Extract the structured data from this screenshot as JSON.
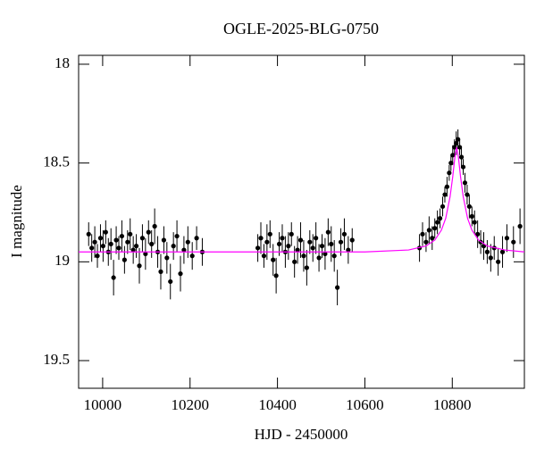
{
  "chart_data": {
    "type": "scatter",
    "title": "OGLE-2025-BLG-0750",
    "x_label": "HJD - 2450000",
    "y_label": "I magnitude",
    "xlim": [
      9945,
      10965
    ],
    "ylim": [
      17.955,
      19.64
    ],
    "y_inverted": true,
    "xticks": [
      10000,
      10200,
      10400,
      10600,
      10800
    ],
    "yticks": [
      18,
      18.5,
      19,
      19.5
    ],
    "series": [
      {
        "type": "errorbar",
        "color": "#000000",
        "x": [
          9968,
          9975,
          9982,
          9988,
          9995,
          10001,
          10007,
          10013,
          10019,
          10025,
          10031,
          10037,
          10044,
          10050,
          10057,
          10063,
          10070,
          10077,
          10084,
          10091,
          10098,
          10105,
          10112,
          10119,
          10126,
          10133,
          10140,
          10147,
          10155,
          10162,
          10170,
          10178,
          10186,
          10195,
          10205,
          10215,
          10228,
          10355,
          10362,
          10369,
          10376,
          10383,
          10390,
          10397,
          10404,
          10411,
          10418,
          10425,
          10432,
          10439,
          10446,
          10453,
          10460,
          10467,
          10474,
          10481,
          10488,
          10495,
          10502,
          10509,
          10516,
          10523,
          10530,
          10537,
          10545,
          10553,
          10562,
          10571,
          10725,
          10732,
          10740,
          10747,
          10754,
          10760,
          10766,
          10772,
          10778,
          10783,
          10788,
          10793,
          10797,
          10801,
          10805,
          10809,
          10813,
          10817,
          10821,
          10825,
          10829,
          10834,
          10839,
          10845,
          10851,
          10858,
          10865,
          10872,
          10880,
          10888,
          10896,
          10905,
          10915,
          10925,
          10940,
          10955
        ],
        "values": [
          18.86,
          18.93,
          18.9,
          18.97,
          18.88,
          18.92,
          18.85,
          18.95,
          18.91,
          19.08,
          18.89,
          18.93,
          18.87,
          18.99,
          18.9,
          18.86,
          18.94,
          18.92,
          19.02,
          18.88,
          18.96,
          18.85,
          18.91,
          18.82,
          18.95,
          19.05,
          18.89,
          18.98,
          19.1,
          18.92,
          18.87,
          19.06,
          18.94,
          18.9,
          18.97,
          18.88,
          18.95,
          18.93,
          18.88,
          18.97,
          18.9,
          18.86,
          18.99,
          19.07,
          18.91,
          18.88,
          18.95,
          18.92,
          18.86,
          19.0,
          18.94,
          18.89,
          18.97,
          19.03,
          18.9,
          18.93,
          18.88,
          18.98,
          18.92,
          18.96,
          18.85,
          18.91,
          18.97,
          19.13,
          18.9,
          18.86,
          18.94,
          18.89,
          18.93,
          18.86,
          18.9,
          18.84,
          18.88,
          18.83,
          18.8,
          18.78,
          18.72,
          18.66,
          18.62,
          18.55,
          18.5,
          18.46,
          18.42,
          18.4,
          18.38,
          18.42,
          18.47,
          18.52,
          18.6,
          18.66,
          18.72,
          18.77,
          18.8,
          18.86,
          18.9,
          18.92,
          18.95,
          18.98,
          18.93,
          19.0,
          18.95,
          18.88,
          18.9,
          18.82
        ],
        "errors": [
          0.06,
          0.07,
          0.08,
          0.06,
          0.07,
          0.08,
          0.06,
          0.07,
          0.08,
          0.09,
          0.07,
          0.06,
          0.08,
          0.07,
          0.06,
          0.08,
          0.07,
          0.06,
          0.09,
          0.07,
          0.08,
          0.06,
          0.07,
          0.09,
          0.08,
          0.09,
          0.07,
          0.08,
          0.09,
          0.07,
          0.08,
          0.09,
          0.07,
          0.08,
          0.07,
          0.06,
          0.07,
          0.07,
          0.08,
          0.06,
          0.09,
          0.07,
          0.08,
          0.09,
          0.06,
          0.07,
          0.08,
          0.07,
          0.06,
          0.08,
          0.07,
          0.09,
          0.08,
          0.09,
          0.06,
          0.07,
          0.08,
          0.07,
          0.06,
          0.08,
          0.07,
          0.09,
          0.08,
          0.09,
          0.07,
          0.08,
          0.07,
          0.06,
          0.07,
          0.06,
          0.05,
          0.07,
          0.06,
          0.05,
          0.06,
          0.05,
          0.05,
          0.04,
          0.05,
          0.04,
          0.04,
          0.05,
          0.04,
          0.06,
          0.05,
          0.04,
          0.05,
          0.04,
          0.05,
          0.05,
          0.06,
          0.05,
          0.06,
          0.07,
          0.06,
          0.07,
          0.06,
          0.07,
          0.06,
          0.07,
          0.08,
          0.07,
          0.08,
          0.09
        ]
      },
      {
        "type": "line",
        "color": "#ff00ff",
        "x": [
          9945,
          10600,
          10700,
          10740,
          10760,
          10775,
          10785,
          10795,
          10801,
          10806,
          10810,
          10814,
          10819,
          10825,
          10835,
          10845,
          10860,
          10880,
          10920,
          10965
        ],
        "values": [
          18.95,
          18.95,
          18.94,
          18.92,
          18.89,
          18.84,
          18.78,
          18.67,
          18.57,
          18.47,
          18.42,
          18.47,
          18.57,
          18.67,
          18.78,
          18.84,
          18.89,
          18.92,
          18.94,
          18.95
        ]
      }
    ]
  }
}
